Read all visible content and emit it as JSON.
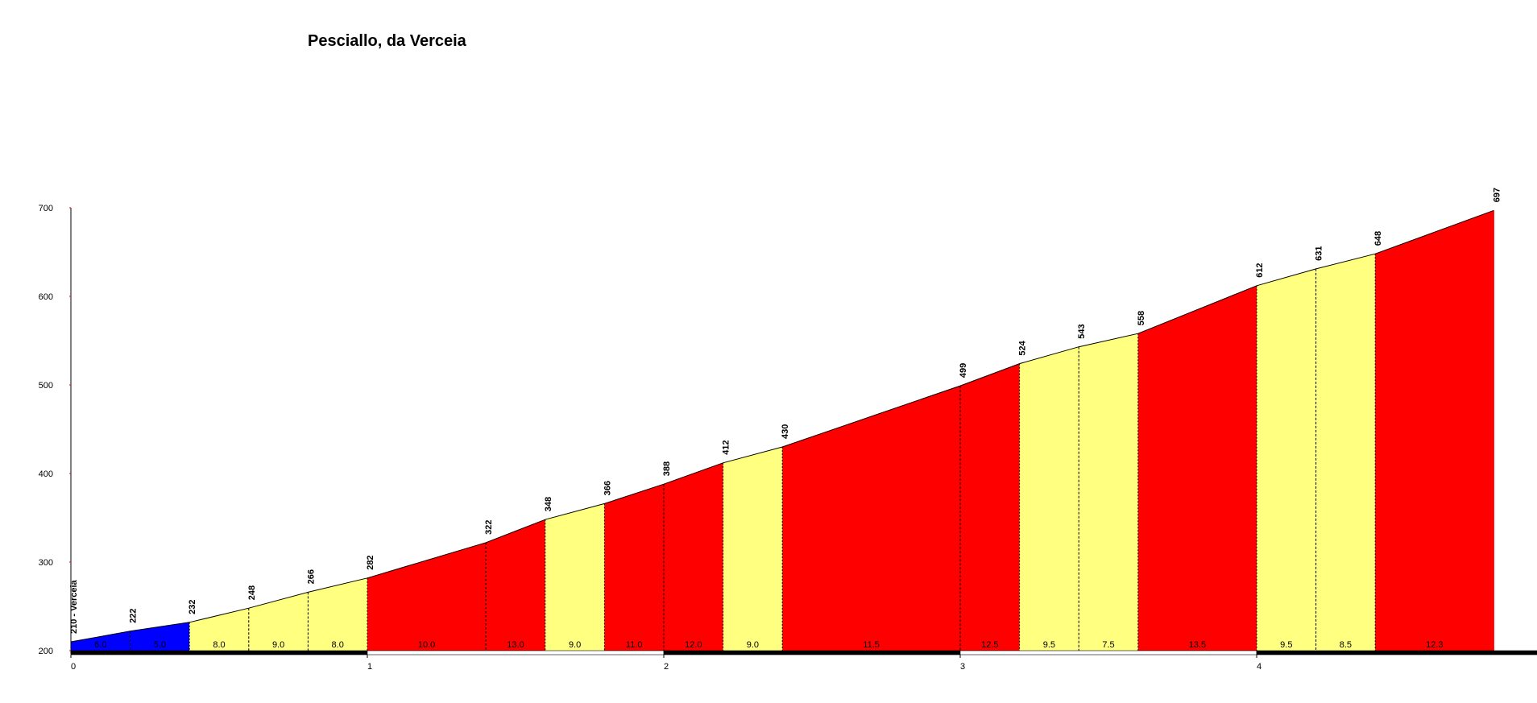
{
  "chart_data": {
    "type": "area",
    "title": "Pesciallo, da Verceia",
    "xlim": [
      0,
      5
    ],
    "ylim": [
      200,
      700
    ],
    "x_ticks": [
      "0",
      "1",
      "2",
      "3",
      "4"
    ],
    "y_ticks": [
      "200",
      "300",
      "400",
      "500",
      "600",
      "700"
    ],
    "points": [
      {
        "x": 0.0,
        "y": 210,
        "label": "210 - Verceia"
      },
      {
        "x": 0.2,
        "y": 222,
        "label": "222"
      },
      {
        "x": 0.4,
        "y": 232,
        "label": "232"
      },
      {
        "x": 0.6,
        "y": 248,
        "label": "248"
      },
      {
        "x": 0.8,
        "y": 266,
        "label": "266"
      },
      {
        "x": 1.0,
        "y": 282,
        "label": "282"
      },
      {
        "x": 1.4,
        "y": 322,
        "label": "322"
      },
      {
        "x": 1.6,
        "y": 348,
        "label": "348"
      },
      {
        "x": 1.8,
        "y": 366,
        "label": "366"
      },
      {
        "x": 2.0,
        "y": 388,
        "label": "388"
      },
      {
        "x": 2.2,
        "y": 412,
        "label": "412"
      },
      {
        "x": 2.4,
        "y": 430,
        "label": "430"
      },
      {
        "x": 3.0,
        "y": 499,
        "label": "499"
      },
      {
        "x": 3.2,
        "y": 524,
        "label": "524"
      },
      {
        "x": 3.4,
        "y": 543,
        "label": "543"
      },
      {
        "x": 3.6,
        "y": 558,
        "label": "558"
      },
      {
        "x": 4.0,
        "y": 612,
        "label": "612"
      },
      {
        "x": 4.2,
        "y": 631,
        "label": "631"
      },
      {
        "x": 4.4,
        "y": 648,
        "label": "648"
      },
      {
        "x": 4.8,
        "y": 697,
        "label": "697"
      }
    ],
    "segments": [
      {
        "from": 0.0,
        "to": 0.2,
        "gradient": "6.0",
        "color": "#0000ff"
      },
      {
        "from": 0.2,
        "to": 0.4,
        "gradient": "5.0",
        "color": "#0000ff"
      },
      {
        "from": 0.4,
        "to": 0.6,
        "gradient": "8.0",
        "color": "#ffff80"
      },
      {
        "from": 0.6,
        "to": 0.8,
        "gradient": "9.0",
        "color": "#ffff80"
      },
      {
        "from": 0.8,
        "to": 1.0,
        "gradient": "8.0",
        "color": "#ffff80"
      },
      {
        "from": 1.0,
        "to": 1.4,
        "gradient": "10.0",
        "color": "#ff0000"
      },
      {
        "from": 1.4,
        "to": 1.6,
        "gradient": "13.0",
        "color": "#ff0000"
      },
      {
        "from": 1.6,
        "to": 1.8,
        "gradient": "9.0",
        "color": "#ffff80"
      },
      {
        "from": 1.8,
        "to": 2.0,
        "gradient": "11.0",
        "color": "#ff0000"
      },
      {
        "from": 2.0,
        "to": 2.2,
        "gradient": "12.0",
        "color": "#ff0000"
      },
      {
        "from": 2.2,
        "to": 2.4,
        "gradient": "9.0",
        "color": "#ffff80"
      },
      {
        "from": 2.4,
        "to": 3.0,
        "gradient": "11.5",
        "color": "#ff0000"
      },
      {
        "from": 3.0,
        "to": 3.2,
        "gradient": "12.5",
        "color": "#ff0000"
      },
      {
        "from": 3.2,
        "to": 3.4,
        "gradient": "9.5",
        "color": "#ffff80"
      },
      {
        "from": 3.4,
        "to": 3.6,
        "gradient": "7.5",
        "color": "#ffff80"
      },
      {
        "from": 3.6,
        "to": 4.0,
        "gradient": "13.5",
        "color": "#ff0000"
      },
      {
        "from": 4.0,
        "to": 4.2,
        "gradient": "9.5",
        "color": "#ffff80"
      },
      {
        "from": 4.2,
        "to": 4.4,
        "gradient": "8.5",
        "color": "#ffff80"
      },
      {
        "from": 4.4,
        "to": 4.8,
        "gradient": "12.3",
        "color": "#ff0000"
      }
    ],
    "km_bar_colors": [
      "#000000",
      "#ffffff"
    ]
  }
}
